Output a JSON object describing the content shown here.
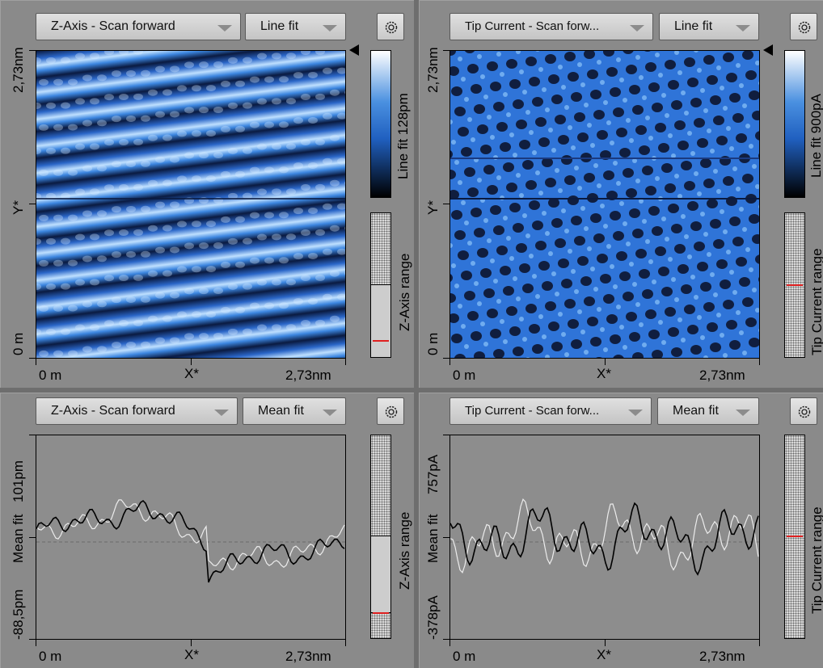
{
  "panels": {
    "top_left": {
      "channel": "Z-Axis - Scan forward",
      "filter": "Line fit",
      "colorbar_label": "Line fit 128pm",
      "range_label": "Z-Axis range",
      "x_axis": {
        "start": "0 m",
        "mid": "X*",
        "end": "2,73nm"
      },
      "y_axis": {
        "start": "0 m",
        "mid": "Y*",
        "end": "2,73nm"
      },
      "range_selection": {
        "top": 0.48,
        "bottom": 1.0,
        "marker": 0.88
      }
    },
    "top_right": {
      "channel": "Tip Current - Scan forw...",
      "filter": "Line fit",
      "colorbar_label": "Line fit 900pA",
      "range_label": "Tip Current range",
      "x_axis": {
        "start": "0 m",
        "mid": "X*",
        "end": "2,73nm"
      },
      "y_axis": {
        "start": "0 m",
        "mid": "Y*",
        "end": "2,73nm"
      },
      "range_selection": {
        "marker": 0.49
      }
    },
    "bottom_left": {
      "channel": "Z-Axis - Scan forward",
      "filter": "Mean fit",
      "range_label": "Z-Axis range",
      "x_axis": {
        "start": "0 m",
        "mid": "X*",
        "end": "2,73nm"
      },
      "y_axis": {
        "min": "-88,5pm",
        "mid": "Mean fit",
        "max": "101pm"
      },
      "range_selection": {
        "top": 0.48,
        "bottom": 0.86,
        "marker": 0.86
      }
    },
    "bottom_right": {
      "channel": "Tip Current - Scan forw...",
      "filter": "Mean fit",
      "range_label": "Tip Current range",
      "x_axis": {
        "start": "0 m",
        "mid": "X*",
        "end": "2,73nm"
      },
      "y_axis": {
        "min": "-378pA",
        "mid": "Mean fit",
        "max": "757pA"
      },
      "range_selection": {
        "marker": 0.49
      }
    }
  },
  "icons": {
    "settings": "gear-icon",
    "dropdown": "chevron-down-icon",
    "marker": "triangle-left-icon"
  },
  "colors": {
    "image_blue": "#2a6ad0",
    "range_marker": "#e02020",
    "line_forward": "#000000",
    "line_backward": "#e6e6e6"
  }
}
